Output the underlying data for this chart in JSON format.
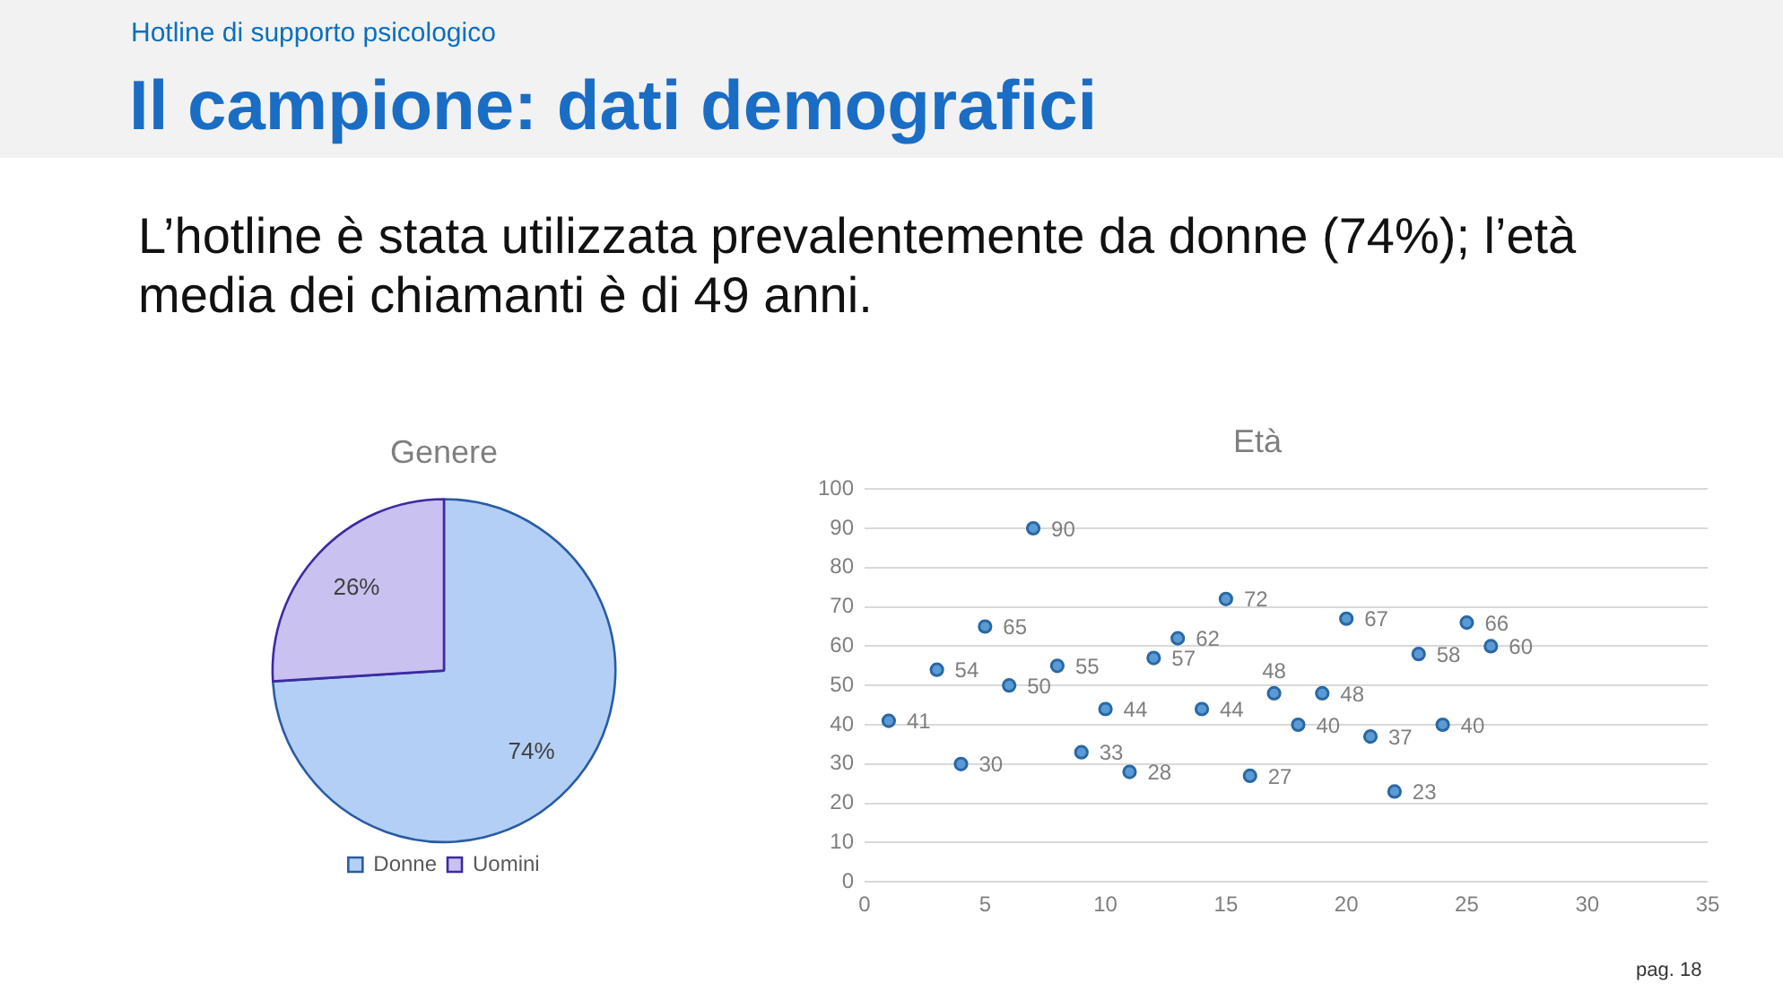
{
  "chart_data": [
    {
      "type": "other",
      "title": "Il campione: dati demografici",
      "subtitle": "Hotline di supporto psicologico",
      "annotations": [
        "L’hotline è stata utilizzata prevalentemente da donne (74%); l’età media dei chiamanti è di 49 anni.",
        "pag. 18"
      ]
    },
    {
      "type": "pie",
      "title": "Genere",
      "categories": [
        "Donne",
        "Uomini"
      ],
      "values": [
        74,
        26
      ],
      "colors": [
        "#b4cff5",
        "#c9c1ef"
      ],
      "value_labels": [
        "74%",
        "26%"
      ],
      "legend": "bottom"
    },
    {
      "type": "scatter",
      "title": "Età",
      "x": [
        1,
        3,
        4,
        5,
        6,
        7,
        8,
        9,
        10,
        11,
        12,
        13,
        14,
        15,
        16,
        17,
        18,
        19,
        20,
        21,
        22,
        23,
        24,
        25,
        26
      ],
      "values": [
        41,
        54,
        30,
        65,
        50,
        90,
        55,
        33,
        44,
        28,
        57,
        62,
        44,
        72,
        27,
        48,
        40,
        48,
        67,
        37,
        23,
        58,
        40,
        66,
        60
      ],
      "color": "#5b9bd5",
      "xlim": [
        0,
        35
      ],
      "xticks": [
        0,
        5,
        10,
        15,
        20,
        25,
        30,
        35
      ],
      "ylim": [
        0,
        100
      ],
      "yticks": [
        0,
        10,
        20,
        30,
        40,
        50,
        60,
        70,
        80,
        90,
        100
      ],
      "grid": "y",
      "marker": "circle",
      "data_labels": true
    }
  ]
}
